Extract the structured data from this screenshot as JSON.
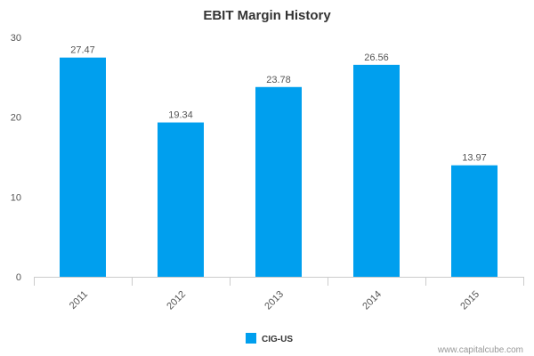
{
  "chart_data": {
    "type": "bar",
    "title": "EBIT Margin History",
    "xlabel": "",
    "ylabel": "",
    "categories": [
      "2011",
      "2012",
      "2013",
      "2014",
      "2015"
    ],
    "series": [
      {
        "name": "CIG-US",
        "values": [
          27.47,
          19.34,
          23.78,
          26.56,
          13.97
        ],
        "color": "#009FEE"
      }
    ],
    "data_labels": [
      "27.47",
      "19.34",
      "23.78",
      "26.56",
      "13.97"
    ],
    "ylim": [
      0,
      30
    ],
    "yticks": [
      0,
      10,
      20,
      30
    ],
    "grid": false,
    "legend_position": "bottom-center"
  },
  "watermark": "www.capitalcube.com"
}
